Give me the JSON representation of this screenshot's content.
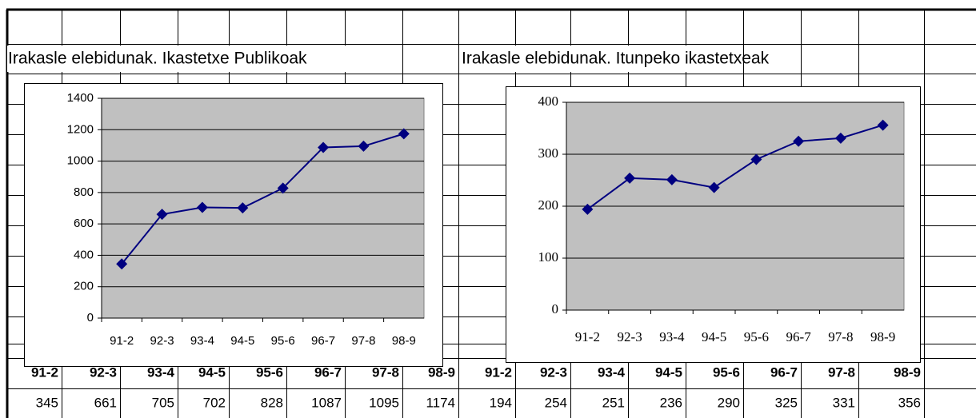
{
  "chart_data": [
    {
      "type": "line",
      "title": "Irakasle elebidunak. Ikastetxe Publikoak",
      "categories": [
        "91-2",
        "92-3",
        "93-4",
        "94-5",
        "95-6",
        "96-7",
        "97-8",
        "98-9"
      ],
      "values": [
        345,
        661,
        705,
        702,
        828,
        1087,
        1095,
        1174
      ],
      "color": "#000080",
      "plot_background": "#c0c0c0",
      "ylim": [
        0,
        1400
      ],
      "yticks": [
        0,
        200,
        400,
        600,
        800,
        1000,
        1200,
        1400
      ],
      "grid": true
    },
    {
      "type": "line",
      "title": "Irakasle elebidunak. Itunpeko ikastetxeak",
      "categories": [
        "91-2",
        "92-3",
        "93-4",
        "94-5",
        "95-6",
        "96-7",
        "97-8",
        "98-9"
      ],
      "values": [
        194,
        254,
        251,
        236,
        290,
        325,
        331,
        356
      ],
      "color": "#000080",
      "plot_background": "#c0c0c0",
      "ylim": [
        0,
        400
      ],
      "yticks": [
        0,
        100,
        200,
        300,
        400
      ],
      "grid": true
    }
  ]
}
